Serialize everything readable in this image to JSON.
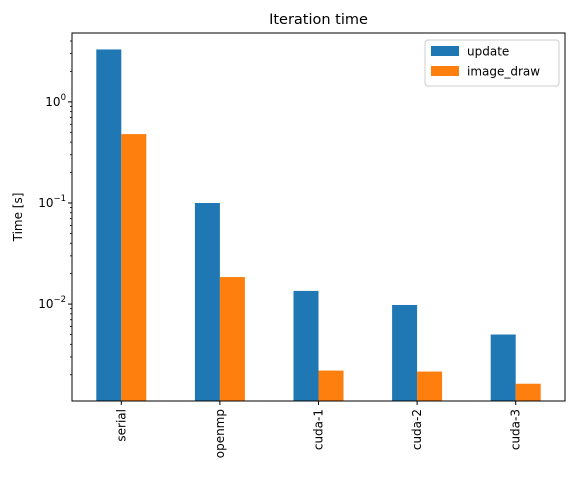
{
  "chart_data": {
    "type": "bar",
    "title": "Iteration time",
    "xlabel": "",
    "ylabel": "Time [s]",
    "yscale": "log",
    "ylim": [
      0.0011,
      4.8
    ],
    "grid": false,
    "legend_position": "top-right",
    "categories": [
      "serial",
      "openmp",
      "cuda-1",
      "cuda-2",
      "cuda-3"
    ],
    "series": [
      {
        "name": "update",
        "color": "#1f77b4",
        "values": [
          3.3,
          0.1,
          0.0135,
          0.0098,
          0.005
        ]
      },
      {
        "name": "image_draw",
        "color": "#ff7f0e",
        "values": [
          0.48,
          0.0185,
          0.0022,
          0.00215,
          0.00163
        ]
      }
    ],
    "y_ticks": [
      {
        "value": 0.01,
        "base": "10",
        "exp": "−2"
      },
      {
        "value": 0.1,
        "base": "10",
        "exp": "−1"
      },
      {
        "value": 1,
        "base": "10",
        "exp": "0"
      }
    ]
  }
}
